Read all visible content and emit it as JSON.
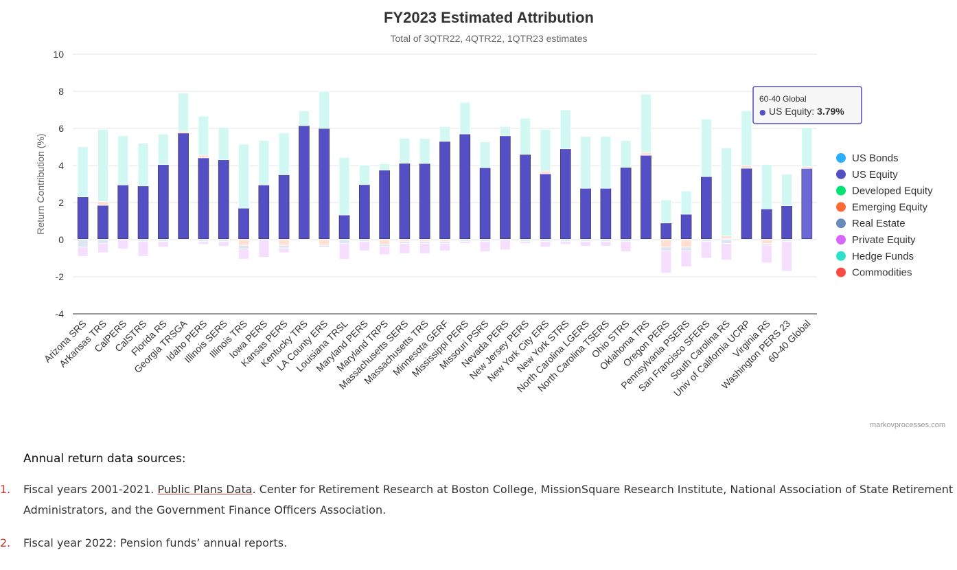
{
  "chart_data": {
    "type": "bar",
    "stacked": true,
    "title": "FY2023 Estimated Attribution",
    "subtitle": "Total of 3QTR22, 4QTR22, 1QTR23 estimates",
    "ylabel": "Return Contribution (%)",
    "ylim": [
      -4,
      10
    ],
    "yticks": [
      -4,
      -2,
      0,
      2,
      4,
      6,
      8,
      10
    ],
    "grid": true,
    "legend_position": "right",
    "credit": "markovprocesses.com",
    "categories": [
      "Arizona SRS",
      "Arkansas TRS",
      "CalPERS",
      "CalSTRS",
      "Florida RS",
      "Georgia TRSGA",
      "Idaho PERS",
      "Illinois SERS",
      "Illinois TRS",
      "Iowa PERS",
      "Kansas PERS",
      "Kentucky TRS",
      "LA County ERS",
      "Louisiana TRSL",
      "Maryland PERS",
      "Maryland TRPS",
      "Massachusetts SERS",
      "Massachusetts TRS",
      "Minnesota GERF",
      "Mississippi PERS",
      "Missouri PSRS",
      "Nevada PERS",
      "New Jersey PERS",
      "New York City ERS",
      "New York STRS",
      "North Carolina LGERS",
      "North Carolina TSERS",
      "Ohio STRS",
      "Oklahoma TRS",
      "Oregon PERS",
      "Pennsylvania PSERS",
      "San Francisco SFERS",
      "South Carolina RS",
      "Univ of California UCRP",
      "Virginia RS",
      "Washington PERS 23",
      "60-40 Global"
    ],
    "series": [
      {
        "name": "US Bonds",
        "color": "#2caffe",
        "values": [
          0.05,
          0.05,
          0.05,
          0.05,
          0.05,
          0.05,
          0.05,
          0.05,
          0.05,
          0.05,
          0.05,
          0.05,
          0.05,
          0.05,
          0.05,
          0.05,
          0.05,
          0.05,
          0.05,
          0.05,
          0.05,
          0.05,
          0.05,
          0.05,
          0.05,
          0.05,
          0.05,
          0.05,
          0.05,
          0.05,
          0.05,
          0.05,
          0.05,
          0.05,
          0.05,
          0.05,
          0.05
        ]
      },
      {
        "name": "US Equity",
        "color": "#544fc5",
        "values": [
          2.26,
          1.8,
          2.9,
          2.85,
          4.0,
          5.7,
          4.36,
          4.26,
          1.65,
          2.9,
          3.45,
          6.1,
          5.95,
          1.28,
          2.92,
          3.7,
          4.07,
          4.06,
          5.25,
          5.65,
          3.83,
          5.55,
          4.55,
          3.5,
          4.85,
          2.72,
          2.72,
          3.85,
          4.5,
          0.85,
          1.32,
          3.35,
          0.0,
          3.8,
          1.61,
          1.78,
          3.79
        ]
      },
      {
        "name": "Developed Equity",
        "color": "#00e272",
        "values": [
          0.0,
          0.0,
          0.0,
          0.0,
          0.0,
          0.0,
          0.0,
          0.0,
          0.0,
          0.0,
          0.0,
          0.0,
          0.0,
          0.0,
          0.0,
          0.0,
          0.0,
          0.0,
          0.0,
          0.0,
          0.0,
          0.0,
          0.0,
          0.0,
          0.0,
          0.0,
          0.0,
          0.0,
          0.0,
          0.0,
          0.0,
          0.0,
          0.0,
          0.0,
          0.0,
          0.0,
          0.0
        ]
      },
      {
        "name": "Emerging Equity",
        "color": "#fe6a35",
        "values": [
          0.0,
          0.2,
          0.0,
          0.0,
          0.0,
          0.1,
          0.15,
          0.0,
          -0.3,
          0.0,
          -0.3,
          0.0,
          -0.3,
          0.0,
          0.0,
          -0.25,
          -0.1,
          -0.1,
          -0.1,
          0.0,
          0.0,
          0.0,
          0.0,
          0.15,
          0.0,
          0.0,
          0.0,
          0.0,
          0.15,
          -0.4,
          -0.4,
          0.0,
          0.15,
          0.15,
          -0.2,
          0.0,
          0.1
        ]
      },
      {
        "name": "Real Estate",
        "color": "#6b8abc",
        "values": [
          -0.4,
          -0.2,
          0.0,
          -0.1,
          -0.1,
          0.0,
          -0.1,
          -0.1,
          -0.2,
          0.0,
          -0.15,
          0.0,
          -0.1,
          -0.2,
          -0.1,
          -0.1,
          -0.1,
          -0.1,
          -0.1,
          -0.1,
          -0.1,
          0.0,
          -0.1,
          -0.1,
          -0.1,
          -0.1,
          -0.1,
          -0.1,
          0.0,
          -0.2,
          -0.2,
          -0.1,
          -0.2,
          0.0,
          -0.1,
          -0.1,
          0.0
        ]
      },
      {
        "name": "Private Equity",
        "color": "#d568fb",
        "values": [
          -0.5,
          -0.5,
          -0.5,
          -0.8,
          -0.3,
          0.0,
          -0.15,
          -0.25,
          -0.55,
          -0.95,
          -0.25,
          0.0,
          0.0,
          -0.85,
          -0.5,
          -0.45,
          -0.55,
          -0.55,
          -0.4,
          -0.1,
          -0.55,
          -0.55,
          -0.1,
          -0.3,
          -0.15,
          -0.25,
          -0.25,
          -0.55,
          0.0,
          -1.2,
          -0.85,
          -0.9,
          -0.9,
          0.0,
          -0.95,
          -1.6,
          0.0
        ]
      },
      {
        "name": "Hedge Funds",
        "color": "#2ee0ca",
        "values": [
          2.7,
          3.9,
          2.65,
          2.3,
          1.65,
          2.05,
          2.1,
          1.75,
          3.45,
          2.4,
          2.25,
          0.8,
          2.0,
          3.1,
          1.05,
          0.35,
          1.35,
          1.35,
          0.8,
          1.7,
          1.4,
          0.5,
          1.95,
          2.25,
          2.1,
          2.8,
          2.8,
          1.45,
          3.15,
          1.25,
          1.25,
          3.1,
          4.75,
          2.95,
          2.4,
          1.7,
          2.1
        ]
      },
      {
        "name": "Commodities",
        "color": "#fa4b42",
        "values": [
          0.0,
          0.0,
          0.0,
          0.0,
          0.0,
          0.0,
          0.0,
          0.0,
          0.0,
          0.0,
          0.0,
          0.0,
          0.0,
          0.0,
          0.0,
          0.0,
          0.0,
          0.0,
          0.0,
          0.0,
          0.0,
          0.0,
          0.0,
          0.0,
          0.0,
          0.0,
          0.0,
          0.0,
          0.0,
          0.0,
          0.0,
          0.0,
          0.0,
          0.0,
          0.0,
          0.0,
          0.0
        ]
      }
    ],
    "tooltip": {
      "category": "60-40 Global",
      "series": "US Equity",
      "value_text": "3.79%",
      "bullet": "●"
    }
  },
  "sources": {
    "heading": "Annual return data sources:",
    "items": [
      {
        "number": "1.",
        "prefix": "Fiscal years 2001-2021. ",
        "link": "Public Plans Data",
        "suffix": ". Center for Retirement Research at Boston College, MissionSquare Research Institute, National Association of State Retirement Administrators, and the Government Finance Officers Association."
      },
      {
        "number": "2.",
        "prefix": "Fiscal year 2022: Pension funds’ annual reports.",
        "link": "",
        "suffix": ""
      }
    ]
  }
}
